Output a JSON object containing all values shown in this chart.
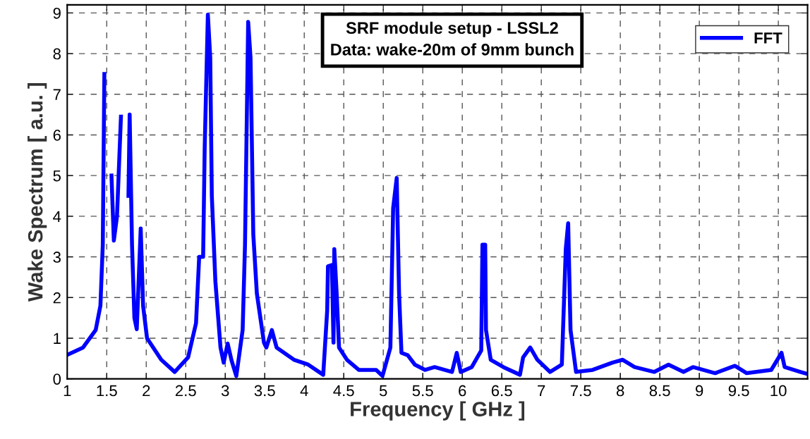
{
  "chart_data": {
    "type": "line",
    "xlabel": "Frequency [ GHz ]",
    "ylabel": "Wake Spectrum [ a.u. ]",
    "annotations": [
      "SRF module setup - LSSL2",
      "Data: wake-20m of 9mm bunch"
    ],
    "xlim": [
      1,
      10.37
    ],
    "ylim": [
      0,
      9.2
    ],
    "xticks": [
      1,
      1.5,
      2,
      2.5,
      3,
      3.5,
      4,
      4.5,
      5,
      5.5,
      6,
      6.5,
      7,
      7.5,
      8,
      8.5,
      9,
      9.5,
      10
    ],
    "yticks": [
      0,
      1,
      2,
      3,
      4,
      5,
      6,
      7,
      8,
      9
    ],
    "grid": true,
    "legend": "top right",
    "line_style": "solid",
    "series": [
      {
        "name": "FFT",
        "color": "#0000ff",
        "x": [
          1.0,
          1.2,
          1.36,
          1.42,
          1.45,
          1.47,
          1.48,
          1.53,
          1.56,
          1.59,
          1.63,
          1.68,
          1.7,
          1.76,
          1.775,
          1.79,
          1.82,
          1.85,
          1.88,
          1.93,
          1.96,
          2.01,
          2.19,
          2.36,
          2.53,
          2.63,
          2.67,
          2.72,
          2.74,
          2.78,
          2.81,
          2.83,
          2.875,
          2.94,
          2.98,
          3.03,
          3.08,
          3.14,
          3.22,
          3.25,
          3.29,
          3.32,
          3.355,
          3.4,
          3.49,
          3.52,
          3.59,
          3.65,
          3.87,
          4.05,
          4.24,
          4.29,
          4.3,
          4.35,
          4.37,
          4.38,
          4.41,
          4.44,
          4.54,
          4.69,
          4.91,
          4.99,
          5.09,
          5.125,
          5.17,
          5.2,
          5.23,
          5.31,
          5.4,
          5.53,
          5.65,
          5.87,
          5.93,
          5.98,
          6.12,
          6.24,
          6.255,
          6.29,
          6.3,
          6.36,
          6.52,
          6.73,
          6.77,
          6.86,
          6.95,
          7.11,
          7.26,
          7.31,
          7.34,
          7.37,
          7.44,
          7.65,
          7.9,
          8.03,
          8.18,
          8.43,
          8.61,
          8.8,
          8.92,
          9.2,
          9.45,
          9.6,
          9.91,
          10.04,
          10.08,
          10.28,
          10.37
        ],
        "values": [
          0.59,
          0.77,
          1.2,
          1.8,
          3.3,
          7.5,
          null,
          null,
          5.0,
          3.4,
          4.0,
          6.45,
          null,
          null,
          4.5,
          6.5,
          3.3,
          1.5,
          1.22,
          3.7,
          1.8,
          1.0,
          0.47,
          0.17,
          0.53,
          1.37,
          3.0,
          3.0,
          5.7,
          8.96,
          7.9,
          4.5,
          2.4,
          0.77,
          0.4,
          0.87,
          0.45,
          0.07,
          1.2,
          3.3,
          8.78,
          7.9,
          3.55,
          2.1,
          0.89,
          0.77,
          1.2,
          0.77,
          0.47,
          0.35,
          0.1,
          1.68,
          2.77,
          2.8,
          0.89,
          3.19,
          2.1,
          0.77,
          0.47,
          0.22,
          0.22,
          0.07,
          0.77,
          4.2,
          4.94,
          2.1,
          0.64,
          0.58,
          0.35,
          0.22,
          0.29,
          0.17,
          0.64,
          0.17,
          0.29,
          0.7,
          3.3,
          3.3,
          1.2,
          0.47,
          0.29,
          0.1,
          0.53,
          0.77,
          0.47,
          0.17,
          0.35,
          3.2,
          3.83,
          1.2,
          0.17,
          0.22,
          0.4,
          0.47,
          0.29,
          0.17,
          0.35,
          0.17,
          0.29,
          0.14,
          0.32,
          0.14,
          0.22,
          0.64,
          0.29,
          0.17,
          0.12
        ]
      }
    ]
  }
}
